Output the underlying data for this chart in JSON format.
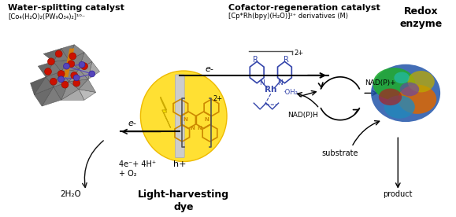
{
  "bg_color": "#ffffff",
  "title_water": "Water-splitting catalyst",
  "formula_water": "[Co₄(H₂O)₂(PW₉O₃₄)₂]¹⁰⁻",
  "title_cofactor": "Cofactor-regeneration catalyst",
  "formula_cofactor": "[Cp*Rh(bpy)(H₂O)]²⁺ derivatives (M)",
  "label_dye": "Light-harvesting\ndye",
  "label_redox": "Redox\nenzyme",
  "label_h2o": "2H₂O",
  "label_products": "4e⁻+ 4H⁺\n+ O₂",
  "label_eminus_top": "e-",
  "label_hplus": "h+",
  "label_eminus_bot": "e-",
  "label_nadp_plus": "NAD(P)+",
  "label_nadph": "NAD(P)H",
  "label_substrate": "substrate",
  "label_product": "product",
  "label_R": "R",
  "label_N": "N",
  "label_Rh": "Rh",
  "label_OH2": "·OH₂",
  "label_2plus": "2+",
  "yellow_color": "#FFD700",
  "yellow_fill": "#FFE033",
  "gray_dark": "#666666",
  "gray_mid": "#888888",
  "gray_light": "#AAAAAA",
  "red_atom": "#CC2200",
  "blue_atom": "#5544BB",
  "orange_strip": "#FF8C00",
  "blue_struct": "#3344AA",
  "arrow_color": "#111111",
  "electrode_color": "#CCCCCC",
  "dye_ring_color": "#CC8800",
  "bracket_color": "#555555"
}
